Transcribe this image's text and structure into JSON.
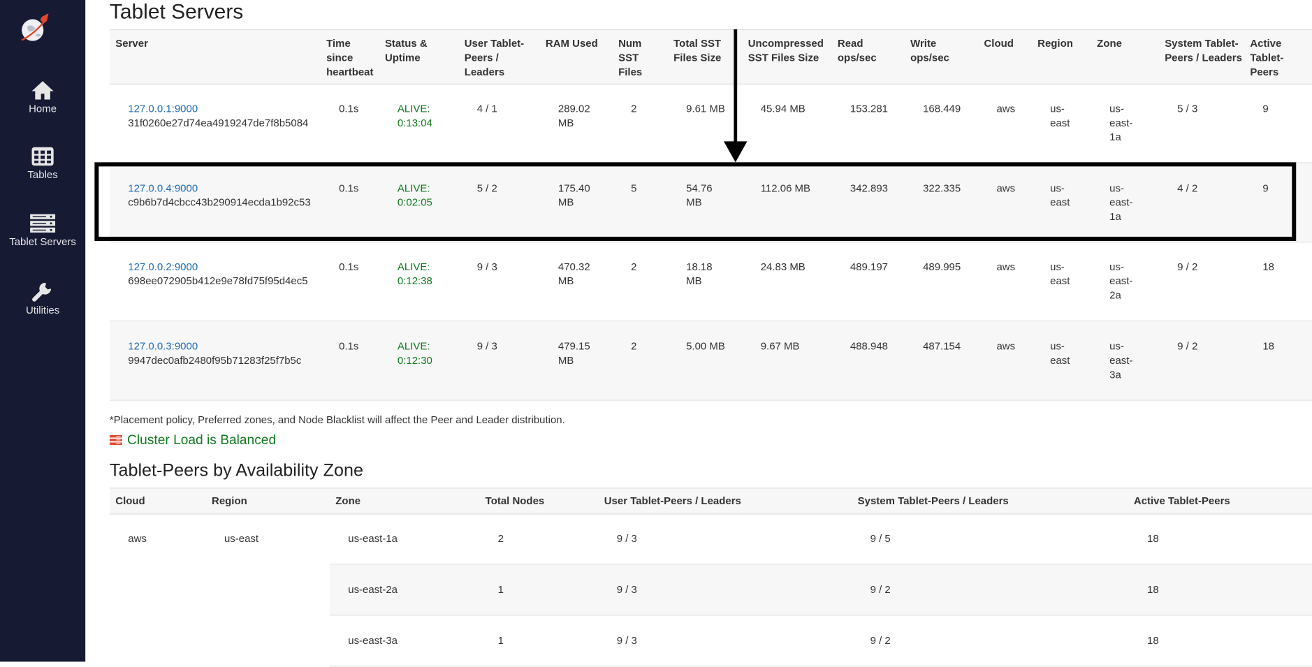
{
  "sidebar": {
    "logo": "yugabyte-rocket-globe-logo",
    "items": [
      {
        "label": "Home",
        "icon": "home-icon"
      },
      {
        "label": "Tables",
        "icon": "table-grid-icon"
      },
      {
        "label": "Tablet Servers",
        "icon": "server-stack-icon"
      },
      {
        "label": "Utilities",
        "icon": "wrench-icon"
      }
    ]
  },
  "tablet_servers": {
    "title": "Tablet Servers",
    "headers": [
      "Server",
      "Time since heartbeat",
      "Status & Uptime",
      "User Tablet-Peers / Leaders",
      "RAM Used",
      "Num SST Files",
      "Total SST Files Size",
      "Uncompressed SST Files Size",
      "Read ops/sec",
      "Write ops/sec",
      "Cloud",
      "Region",
      "Zone",
      "System Tablet-Peers / Leaders",
      "Active Tablet-Peers"
    ],
    "rows": [
      {
        "address": "127.0.0.1:9000",
        "uuid": "31f0260e27d74ea4919247de7f8b5084",
        "heartbeat": "0.1s",
        "status": "ALIVE: 0:13:04",
        "user_peers": "4 / 1",
        "ram": "289.02 MB",
        "num_sst": "2",
        "total_sst": "9.61 MB",
        "uncompressed": "45.94 MB",
        "read": "153.281",
        "write": "168.449",
        "cloud": "aws",
        "region": "us-east",
        "zone": "us-east-1a",
        "system_peers": "5 / 3",
        "active": "9"
      },
      {
        "address": "127.0.0.4:9000",
        "uuid": "c9b6b7d4cbcc43b290914ecda1b92c53",
        "heartbeat": "0.1s",
        "status": "ALIVE: 0:02:05",
        "user_peers": "5 / 2",
        "ram": "175.40 MB",
        "num_sst": "5",
        "total_sst": "54.76 MB",
        "uncompressed": "112.06 MB",
        "read": "342.893",
        "write": "322.335",
        "cloud": "aws",
        "region": "us-east",
        "zone": "us-east-1a",
        "system_peers": "4 / 2",
        "active": "9"
      },
      {
        "address": "127.0.0.2:9000",
        "uuid": "698ee072905b412e9e78fd75f95d4ec5",
        "heartbeat": "0.1s",
        "status": "ALIVE: 0:12:38",
        "user_peers": "9 / 3",
        "ram": "470.32 MB",
        "num_sst": "2",
        "total_sst": "18.18 MB",
        "uncompressed": "24.83 MB",
        "read": "489.197",
        "write": "489.995",
        "cloud": "aws",
        "region": "us-east",
        "zone": "us-east-2a",
        "system_peers": "9 / 2",
        "active": "18"
      },
      {
        "address": "127.0.0.3:9000",
        "uuid": "9947dec0afb2480f95b71283f25f7b5c",
        "heartbeat": "0.1s",
        "status": "ALIVE: 0:12:30",
        "user_peers": "9 / 3",
        "ram": "479.15 MB",
        "num_sst": "2",
        "total_sst": "5.00 MB",
        "uncompressed": "9.67 MB",
        "read": "488.948",
        "write": "487.154",
        "cloud": "aws",
        "region": "us-east",
        "zone": "us-east-3a",
        "system_peers": "9 / 2",
        "active": "18"
      }
    ],
    "footnote": "*Placement policy, Preferred zones, and Node Blacklist will affect the Peer and Leader distribution.",
    "balance_status": "Cluster Load is Balanced"
  },
  "zones": {
    "title": "Tablet-Peers by Availability Zone",
    "headers": [
      "Cloud",
      "Region",
      "Zone",
      "Total Nodes",
      "User Tablet-Peers / Leaders",
      "System Tablet-Peers / Leaders",
      "Active Tablet-Peers"
    ],
    "cloud": "aws",
    "region": "us-east",
    "rows": [
      {
        "zone": "us-east-1a",
        "nodes": "2",
        "user": "9 / 3",
        "system": "9 / 5",
        "active": "18"
      },
      {
        "zone": "us-east-2a",
        "nodes": "1",
        "user": "9 / 3",
        "system": "9 / 2",
        "active": "18"
      },
      {
        "zone": "us-east-3a",
        "nodes": "1",
        "user": "9 / 3",
        "system": "9 / 2",
        "active": "18"
      }
    ]
  },
  "colors": {
    "sidebar": "#161a33",
    "link": "#1f6bb5",
    "alive": "#117a1e",
    "highlight_box": "#000000"
  }
}
